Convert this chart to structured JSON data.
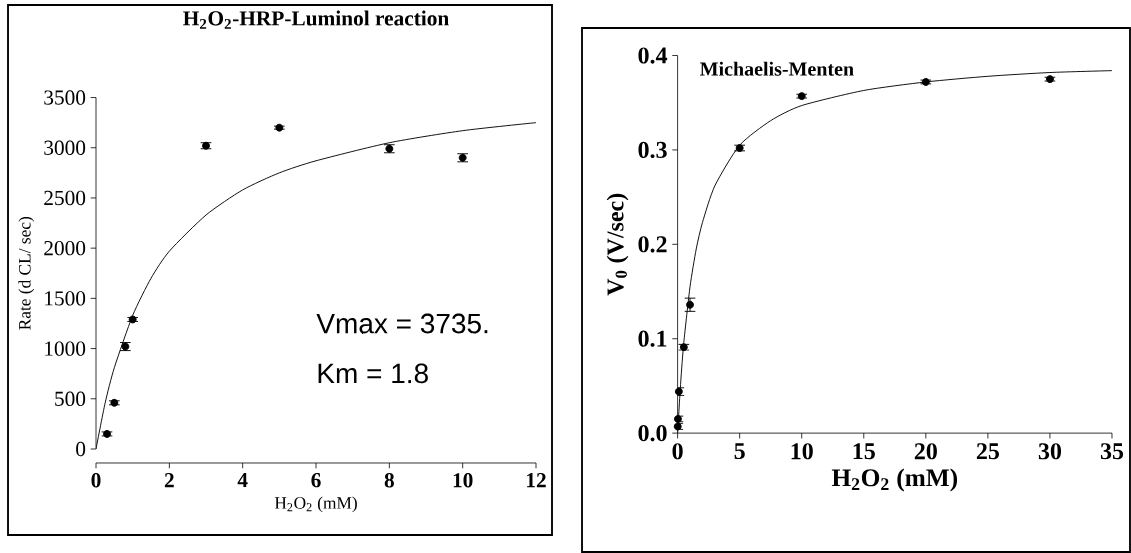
{
  "chart_data": [
    {
      "type": "scatter",
      "title": "H$_{2}$O$_{2}$-HRP-Luminol reaction",
      "xlabel": "H$_{2}$O$_{2}$ (mM)",
      "ylabel": "Rate (d CL/ sec)",
      "xlim": [
        0,
        12
      ],
      "ylim": [
        0,
        3500
      ],
      "xticks": [
        0,
        2,
        4,
        6,
        8,
        10,
        12
      ],
      "yticks": [
        0,
        500,
        1000,
        1500,
        2000,
        2500,
        3000,
        3500
      ],
      "annotations": [
        "Vmax = 3735.",
        "Km = 1.8"
      ],
      "series": [
        {
          "color": "#000000",
          "marker": "circle",
          "x": [
            0.3,
            0.5,
            0.8,
            1,
            3,
            5,
            8,
            10
          ],
          "values": [
            150,
            460,
            1020,
            1290,
            3020,
            3200,
            2990,
            2900
          ],
          "errors": [
            20,
            20,
            40,
            20,
            30,
            15,
            40,
            40
          ]
        },
        {
          "type": "line",
          "color": "#000000",
          "marker": "none",
          "x": [
            0,
            0.25,
            0.5,
            1,
            1.5,
            2,
            3,
            4,
            5,
            6,
            8,
            10,
            12
          ],
          "values": [
            0,
            460,
            810,
            1330,
            1700,
            1970,
            2330,
            2580,
            2750,
            2870,
            3050,
            3170,
            3250
          ]
        }
      ]
    },
    {
      "type": "scatter",
      "title": "Michaelis-Menten",
      "xlabel": "H$_{2}$O$_{2}$ (mM)",
      "ylabel": "V$_{0}$ (V/sec)",
      "xlim": [
        0,
        35
      ],
      "ylim": [
        0,
        0.4
      ],
      "xticks": [
        0,
        5,
        10,
        15,
        20,
        25,
        30,
        35
      ],
      "yticks": [
        {
          "value": 0,
          "label": "0.0"
        },
        0.1,
        0.2,
        0.3,
        0.4
      ],
      "series": [
        {
          "color": "#000000",
          "marker": "circle",
          "x": [
            0.01,
            0.025,
            0.1,
            0.5,
            1,
            5,
            10,
            20,
            30
          ],
          "values": [
            0.007,
            0.015,
            0.044,
            0.091,
            0.136,
            0.302,
            0.357,
            0.372,
            0.375
          ],
          "errors": [
            0.003,
            0.003,
            0.004,
            0.003,
            0.007,
            0.003,
            0.002,
            0.002,
            0.002
          ]
        },
        {
          "type": "line",
          "color": "#000000",
          "marker": "none",
          "x": [
            0,
            0.25,
            0.5,
            1,
            1.5,
            2,
            3,
            5,
            7.5,
            10,
            15,
            20,
            25,
            30,
            35
          ],
          "values": [
            0,
            0.054,
            0.096,
            0.155,
            0.195,
            0.223,
            0.262,
            0.305,
            0.331,
            0.347,
            0.363,
            0.372,
            0.378,
            0.382,
            0.384
          ]
        }
      ]
    }
  ]
}
